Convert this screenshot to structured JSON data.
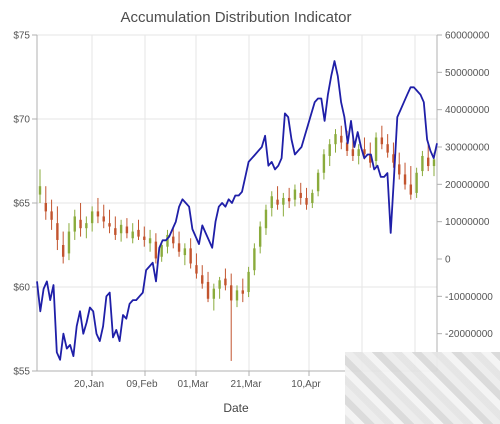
{
  "chart_data": {
    "type": "candlestick_with_line",
    "title": "Accumulation Distribution Indicator",
    "xlabel": "Date",
    "ylabel_left": "",
    "ylabel_right": "",
    "x_ticks": [
      "20,Jan",
      "09,Feb",
      "01,Mar",
      "21,Mar",
      "10,Apr"
    ],
    "y_left": {
      "ticks": [
        "$55",
        "$60",
        "$65",
        "$70",
        "$75"
      ],
      "min": 55,
      "max": 75
    },
    "y_right": {
      "ticks": [
        "-20000000",
        "-10000000",
        "0",
        "10000000",
        "20000000",
        "30000000",
        "40000000",
        "50000000",
        "60000000"
      ],
      "min": -30000000,
      "max": 60000000
    },
    "grid": true,
    "colors": {
      "line": "#1f1fa8",
      "bull": "#8aab3c",
      "bear": "#c2542e",
      "grid": "#e6e6e6",
      "axis": "#b0b0b0"
    },
    "ad_line": [
      -6000000,
      -14000000,
      -8000000,
      -6000000,
      -11000000,
      -7000000,
      -25000000,
      -27000000,
      -20000000,
      -24000000,
      -23000000,
      -26000000,
      -18000000,
      -14000000,
      -20000000,
      -17000000,
      -13000000,
      -14000000,
      -20000000,
      -22000000,
      -18000000,
      -10000000,
      -9000000,
      -21000000,
      -19000000,
      -22000000,
      -15000000,
      -16000000,
      -12000000,
      -11000000,
      -11000000,
      -10000000,
      -9000000,
      -3000000,
      -2000000,
      -1000000,
      -6000000,
      3000000,
      5000000,
      5000000,
      6000000,
      8000000,
      10000000,
      14000000,
      16000000,
      15000000,
      14000000,
      8000000,
      6000000,
      4000000,
      9000000,
      7000000,
      5000000,
      3000000,
      10000000,
      14000000,
      15000000,
      14000000,
      16000000,
      15000000,
      17000000,
      17000000,
      18000000,
      22000000,
      26000000,
      27000000,
      28000000,
      29000000,
      30000000,
      33000000,
      25000000,
      26000000,
      24000000,
      25000000,
      27000000,
      39000000,
      38000000,
      32000000,
      28000000,
      29000000,
      30000000,
      33000000,
      36000000,
      39000000,
      42000000,
      43000000,
      43000000,
      37000000,
      44000000,
      49000000,
      53000000,
      49000000,
      42000000,
      38000000,
      31000000,
      37000000,
      30000000,
      34000000,
      30000000,
      27000000,
      28000000,
      28000000,
      24000000,
      25000000,
      22000000,
      22000000,
      23000000,
      7000000,
      22000000,
      38000000,
      40000000,
      42000000,
      44000000,
      46000000,
      46000000,
      45000000,
      44000000,
      42000000,
      32000000,
      29000000,
      27000000,
      31000000
    ],
    "candles": [
      {
        "o": 65.5,
        "h": 67,
        "l": 65,
        "c": 66,
        "dir": "up"
      },
      {
        "o": 65,
        "h": 66,
        "l": 64,
        "c": 64.5,
        "dir": "down"
      },
      {
        "o": 64.5,
        "h": 65.2,
        "l": 63.4,
        "c": 64,
        "dir": "down"
      },
      {
        "o": 63.8,
        "h": 64.8,
        "l": 62.2,
        "c": 62.8,
        "dir": "down"
      },
      {
        "o": 62.5,
        "h": 63.3,
        "l": 61.4,
        "c": 61.8,
        "dir": "down"
      },
      {
        "o": 62,
        "h": 63.8,
        "l": 61.6,
        "c": 63.3,
        "dir": "up"
      },
      {
        "o": 63.3,
        "h": 64.6,
        "l": 62.8,
        "c": 64.2,
        "dir": "up"
      },
      {
        "o": 64,
        "h": 65,
        "l": 63,
        "c": 63.5,
        "dir": "down"
      },
      {
        "o": 63.5,
        "h": 64.2,
        "l": 62.9,
        "c": 63.8,
        "dir": "up"
      },
      {
        "o": 63.8,
        "h": 64.8,
        "l": 63.3,
        "c": 64.5,
        "dir": "up"
      },
      {
        "o": 64.5,
        "h": 65.3,
        "l": 63.8,
        "c": 64.2,
        "dir": "down"
      },
      {
        "o": 64.2,
        "h": 64.9,
        "l": 63.5,
        "c": 63.9,
        "dir": "down"
      },
      {
        "o": 63.8,
        "h": 64.6,
        "l": 63.2,
        "c": 63.6,
        "dir": "down"
      },
      {
        "o": 63.5,
        "h": 64.2,
        "l": 62.8,
        "c": 63.1,
        "dir": "down"
      },
      {
        "o": 63.2,
        "h": 64,
        "l": 62.7,
        "c": 63.7,
        "dir": "up"
      },
      {
        "o": 63.6,
        "h": 64.1,
        "l": 62.9,
        "c": 63.2,
        "dir": "down"
      },
      {
        "o": 62.9,
        "h": 63.8,
        "l": 62.6,
        "c": 63.3,
        "dir": "up"
      },
      {
        "o": 63.4,
        "h": 64,
        "l": 62.8,
        "c": 63,
        "dir": "down"
      },
      {
        "o": 63,
        "h": 63.6,
        "l": 62.4,
        "c": 62.8,
        "dir": "down"
      },
      {
        "o": 62.6,
        "h": 63.4,
        "l": 62.1,
        "c": 62.9,
        "dir": "up"
      },
      {
        "o": 62.7,
        "h": 63.2,
        "l": 61.4,
        "c": 61.7,
        "dir": "down"
      },
      {
        "o": 61.8,
        "h": 62.7,
        "l": 61.5,
        "c": 62.5,
        "dir": "up"
      },
      {
        "o": 62.4,
        "h": 63.4,
        "l": 62,
        "c": 63.1,
        "dir": "up"
      },
      {
        "o": 63,
        "h": 63.6,
        "l": 62.3,
        "c": 62.6,
        "dir": "down"
      },
      {
        "o": 62.6,
        "h": 63.3,
        "l": 61.8,
        "c": 62.1,
        "dir": "down"
      },
      {
        "o": 61.9,
        "h": 62.6,
        "l": 61.3,
        "c": 62.3,
        "dir": "up"
      },
      {
        "o": 62.3,
        "h": 62.9,
        "l": 61.1,
        "c": 61.4,
        "dir": "down"
      },
      {
        "o": 61.3,
        "h": 62,
        "l": 60.5,
        "c": 60.8,
        "dir": "down"
      },
      {
        "o": 60.7,
        "h": 61.3,
        "l": 59.9,
        "c": 60.2,
        "dir": "down"
      },
      {
        "o": 60.3,
        "h": 60.9,
        "l": 59.1,
        "c": 59.3,
        "dir": "down"
      },
      {
        "o": 59.3,
        "h": 60.2,
        "l": 58.6,
        "c": 59.9,
        "dir": "up"
      },
      {
        "o": 59.9,
        "h": 60.6,
        "l": 59.3,
        "c": 60.4,
        "dir": "up"
      },
      {
        "o": 60.5,
        "h": 61.1,
        "l": 59.8,
        "c": 60.1,
        "dir": "down"
      },
      {
        "o": 60.1,
        "h": 60.8,
        "l": 55.6,
        "c": 59.2,
        "dir": "down"
      },
      {
        "o": 59.2,
        "h": 60.1,
        "l": 58.8,
        "c": 59.8,
        "dir": "up"
      },
      {
        "o": 59.8,
        "h": 60.5,
        "l": 59.1,
        "c": 59.6,
        "dir": "down"
      },
      {
        "o": 59.7,
        "h": 61.2,
        "l": 59.4,
        "c": 60.9,
        "dir": "up"
      },
      {
        "o": 61,
        "h": 62.6,
        "l": 60.7,
        "c": 62.3,
        "dir": "up"
      },
      {
        "o": 62.4,
        "h": 63.9,
        "l": 62,
        "c": 63.6,
        "dir": "up"
      },
      {
        "o": 63.5,
        "h": 64.9,
        "l": 63.1,
        "c": 64.6,
        "dir": "up"
      },
      {
        "o": 64.7,
        "h": 65.7,
        "l": 64.2,
        "c": 65.4,
        "dir": "up"
      },
      {
        "o": 65.2,
        "h": 66,
        "l": 64.6,
        "c": 64.9,
        "dir": "down"
      },
      {
        "o": 64.9,
        "h": 65.6,
        "l": 64.2,
        "c": 65.3,
        "dir": "up"
      },
      {
        "o": 65.3,
        "h": 65.9,
        "l": 64.7,
        "c": 65.1,
        "dir": "down"
      },
      {
        "o": 65.2,
        "h": 66.1,
        "l": 64.8,
        "c": 65.8,
        "dir": "up"
      },
      {
        "o": 65.6,
        "h": 66.2,
        "l": 64.9,
        "c": 65.3,
        "dir": "down"
      },
      {
        "o": 65.3,
        "h": 65.9,
        "l": 64.6,
        "c": 64.9,
        "dir": "down"
      },
      {
        "o": 65,
        "h": 65.8,
        "l": 64.7,
        "c": 65.6,
        "dir": "up"
      },
      {
        "o": 65.7,
        "h": 67,
        "l": 65.4,
        "c": 66.8,
        "dir": "up"
      },
      {
        "o": 66.8,
        "h": 68.2,
        "l": 66.4,
        "c": 67.9,
        "dir": "up"
      },
      {
        "o": 67.8,
        "h": 68.8,
        "l": 67.2,
        "c": 68.5,
        "dir": "up"
      },
      {
        "o": 68.5,
        "h": 69.4,
        "l": 68,
        "c": 69.1,
        "dir": "up"
      },
      {
        "o": 69,
        "h": 69.6,
        "l": 68.2,
        "c": 68.6,
        "dir": "down"
      },
      {
        "o": 68.6,
        "h": 69.3,
        "l": 67.8,
        "c": 68.1,
        "dir": "down"
      },
      {
        "o": 68.2,
        "h": 68.9,
        "l": 67.5,
        "c": 67.8,
        "dir": "down"
      },
      {
        "o": 67.8,
        "h": 68.5,
        "l": 67.3,
        "c": 68.2,
        "dir": "up"
      },
      {
        "o": 68.2,
        "h": 68.9,
        "l": 67.6,
        "c": 67.9,
        "dir": "down"
      },
      {
        "o": 67.9,
        "h": 68.6,
        "l": 67.1,
        "c": 67.4,
        "dir": "down"
      },
      {
        "o": 67.5,
        "h": 69.2,
        "l": 67.2,
        "c": 68.9,
        "dir": "up"
      },
      {
        "o": 68.9,
        "h": 69.6,
        "l": 68.2,
        "c": 68.5,
        "dir": "down"
      },
      {
        "o": 68.5,
        "h": 69.1,
        "l": 67.7,
        "c": 68,
        "dir": "down"
      },
      {
        "o": 67.9,
        "h": 68.6,
        "l": 67.1,
        "c": 67.4,
        "dir": "down"
      },
      {
        "o": 67.3,
        "h": 68,
        "l": 66.4,
        "c": 66.7,
        "dir": "down"
      },
      {
        "o": 66.7,
        "h": 67.4,
        "l": 65.8,
        "c": 66.1,
        "dir": "down"
      },
      {
        "o": 66.1,
        "h": 67.2,
        "l": 65.2,
        "c": 65.5,
        "dir": "down"
      },
      {
        "o": 65.6,
        "h": 67.1,
        "l": 65.3,
        "c": 66.8,
        "dir": "up"
      },
      {
        "o": 66.9,
        "h": 68.1,
        "l": 66.6,
        "c": 67.8,
        "dir": "up"
      },
      {
        "o": 67.7,
        "h": 68.5,
        "l": 66.9,
        "c": 67.2,
        "dir": "down"
      },
      {
        "o": 67.2,
        "h": 68,
        "l": 66.6,
        "c": 67.6,
        "dir": "up"
      }
    ]
  }
}
